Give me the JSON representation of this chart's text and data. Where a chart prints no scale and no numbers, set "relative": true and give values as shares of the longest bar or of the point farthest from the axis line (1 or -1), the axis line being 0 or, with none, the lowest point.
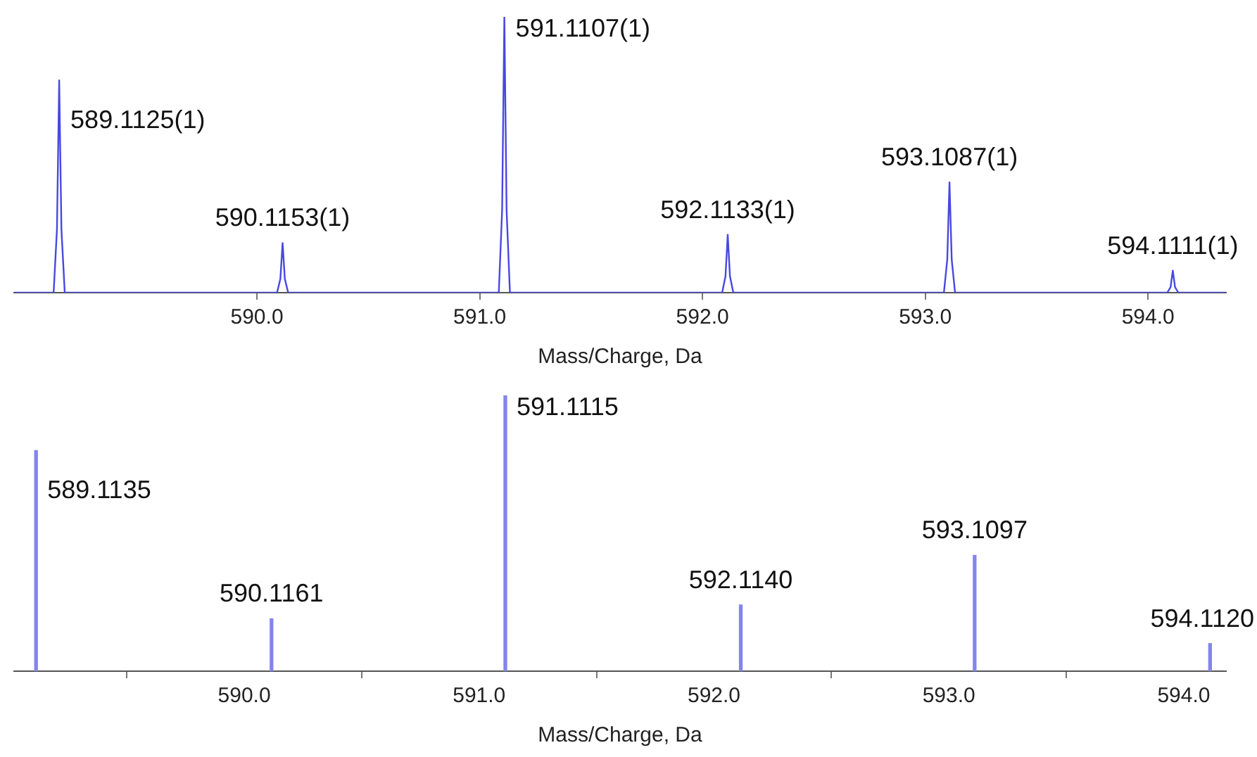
{
  "chart_data": [
    {
      "type": "line",
      "relative": true,
      "xlabel": "Mass/Charge, Da",
      "xlim": [
        588.91,
        594.35
      ],
      "xticks": [
        {
          "value": 590,
          "label": "590.0"
        },
        {
          "value": 591,
          "label": "591.0"
        },
        {
          "value": 592,
          "label": "592.0"
        },
        {
          "value": 593,
          "label": "593.0"
        },
        {
          "value": 594,
          "label": "594.0"
        }
      ],
      "tick_labels": "x",
      "grid": false,
      "legend": false,
      "marker": "none",
      "line_style": "solid",
      "series": [
        {
          "color": "#4848e0",
          "x": [
            588.91,
            589.0875,
            589.1025,
            589.1125,
            589.1225,
            589.1375,
            590.0903,
            590.1053,
            590.1153,
            590.1253,
            590.1403,
            591.0857,
            591.1007,
            591.1107,
            591.1207,
            591.1357,
            592.0883,
            592.1033,
            592.1133,
            592.1233,
            592.1383,
            593.0837,
            593.0987,
            593.1087,
            593.1187,
            593.1337,
            594.0861,
            594.1011,
            594.1111,
            594.1211,
            594.1361,
            594.35
          ],
          "values": [
            0,
            0,
            0.23,
            0.77,
            0.23,
            0,
            0,
            0.05,
            0.18,
            0.05,
            0,
            0,
            0.3,
            1,
            0.3,
            0,
            0,
            0.06,
            0.21,
            0.06,
            0,
            0,
            0.12,
            0.4,
            0.12,
            0,
            0,
            0.02,
            0.08,
            0.02,
            0,
            0
          ]
        }
      ],
      "annotations": [
        {
          "text": "589.1125(1)",
          "x": 589.1125,
          "y": 0.77
        },
        {
          "text": "590.1153(1)",
          "x": 590.1153,
          "y": 0.18
        },
        {
          "text": "591.1107(1)",
          "x": 591.1107,
          "y": 1
        },
        {
          "text": "592.1133(1)",
          "x": 592.1133,
          "y": 0.21
        },
        {
          "text": "593.1087(1)",
          "x": 593.1087,
          "y": 0.4
        },
        {
          "text": "594.1111(1)",
          "x": 594.1111,
          "y": 0.08
        }
      ]
    },
    {
      "type": "bar",
      "relative": true,
      "xlabel": "Mass/Charge, Da",
      "xlim": [
        589.02,
        594.18
      ],
      "xticks": [
        {
          "value": 590,
          "label": "590.0"
        },
        {
          "value": 591,
          "label": "591.0"
        },
        {
          "value": 592,
          "label": "592.0"
        },
        {
          "value": 593,
          "label": "593.0"
        },
        {
          "value": 594,
          "label": "594.0"
        }
      ],
      "tick_labels": "x",
      "grid": false,
      "legend": false,
      "series": [
        {
          "color": "#8484ec",
          "x": [
            589.1135,
            590.1161,
            591.1115,
            592.114,
            593.1097,
            594.112
          ],
          "values": [
            0.8,
            0.19,
            1,
            0.24,
            0.42,
            0.1
          ]
        }
      ],
      "annotations": [
        {
          "text": "589.1135",
          "x": 589.1135,
          "y": 0.8
        },
        {
          "text": "590.1161",
          "x": 590.1161,
          "y": 0.19
        },
        {
          "text": "591.1115",
          "x": 591.1115,
          "y": 1
        },
        {
          "text": "592.1140",
          "x": 592.114,
          "y": 0.24
        },
        {
          "text": "593.1097",
          "x": 593.1097,
          "y": 0.42
        },
        {
          "text": "594.1120",
          "x": 594.112,
          "y": 0.1
        }
      ]
    }
  ]
}
